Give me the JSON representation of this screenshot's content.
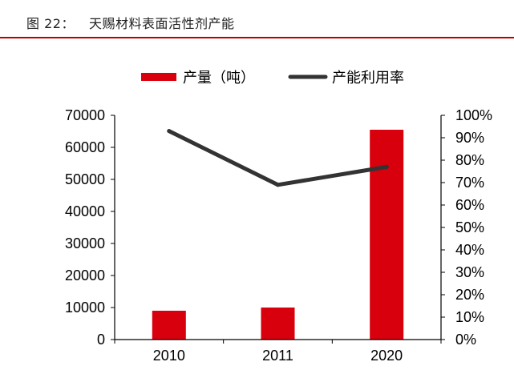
{
  "figure": {
    "number_label": "图 22：",
    "title": "天赐材料表面活性剂产能"
  },
  "colors": {
    "bar": "#d9000d",
    "line": "#333333",
    "rule": "#c00000"
  },
  "chart_data": {
    "type": "bar",
    "title": "天赐材料表面活性剂产能",
    "categories": [
      "2010",
      "2011",
      "2020"
    ],
    "series": [
      {
        "name": "产量（吨）",
        "type": "bar",
        "axis": "left",
        "values": [
          9000,
          10000,
          65500
        ]
      },
      {
        "name": "产能利用率",
        "type": "line",
        "axis": "right",
        "values": [
          93,
          69,
          77
        ]
      }
    ],
    "y_left": {
      "range": [
        0,
        70000
      ],
      "ticks": [
        "0",
        "10000",
        "20000",
        "30000",
        "40000",
        "50000",
        "60000",
        "70000"
      ]
    },
    "y_right": {
      "range": [
        0,
        100
      ],
      "ticks": [
        "0%",
        "10%",
        "20%",
        "30%",
        "40%",
        "50%",
        "60%",
        "70%",
        "80%",
        "90%",
        "100%"
      ]
    },
    "xlabel": "",
    "ylabel": "",
    "grid": false,
    "legend_position": "top-center"
  }
}
